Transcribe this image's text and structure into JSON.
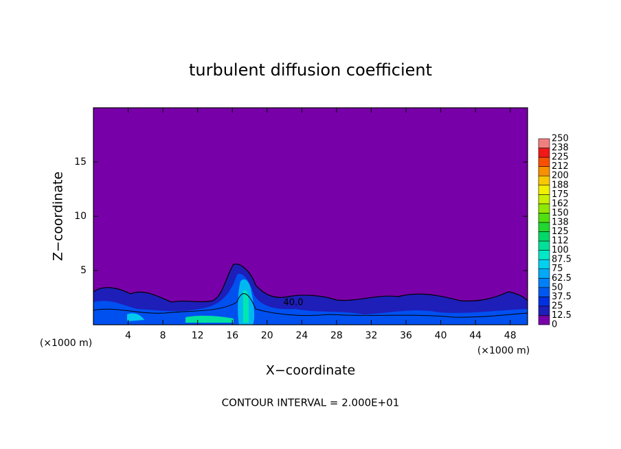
{
  "chart_data": {
    "type": "contour",
    "title": "turbulent diffusion coefficient",
    "x_label": "X−coordinate",
    "y_label": "Z−coordinate",
    "x_unit_labels": [
      "(×1000 m)",
      "(×1000 m)"
    ],
    "xlim": [
      0,
      50
    ],
    "xticks": [
      4,
      8,
      12,
      16,
      20,
      24,
      28,
      32,
      36,
      40,
      44,
      48
    ],
    "ylim": [
      0,
      20
    ],
    "yticks": [
      5,
      10,
      15
    ],
    "colorbar": {
      "levels": [
        0,
        12.5,
        25,
        37.5,
        50,
        62.5,
        75,
        87.5,
        100,
        {
          "value": 112.5,
          "label": "112"
        },
        125,
        {
          "value": 137.5,
          "label": "138"
        },
        150,
        {
          "value": 162.5,
          "label": "162"
        },
        175,
        {
          "value": 187.5,
          "label": "188"
        },
        200,
        {
          "value": 212.5,
          "label": "212"
        },
        225,
        {
          "value": 237.5,
          "label": "238"
        },
        250
      ],
      "colors": [
        "#7800a8",
        "#1e1eb8",
        "#0030e0",
        "#0058f0",
        "#0080f8",
        "#00a8f8",
        "#00d0f0",
        "#00e8c8",
        "#00e098",
        "#00d868",
        "#20d830",
        "#50e010",
        "#90e800",
        "#c8f000",
        "#f0f000",
        "#f8c800",
        "#f89000",
        "#f85000",
        "#f01818",
        "#f08080"
      ]
    },
    "contour_label": "40.0",
    "footnote": "CONTOUR INTERVAL = 2.000E+01"
  }
}
